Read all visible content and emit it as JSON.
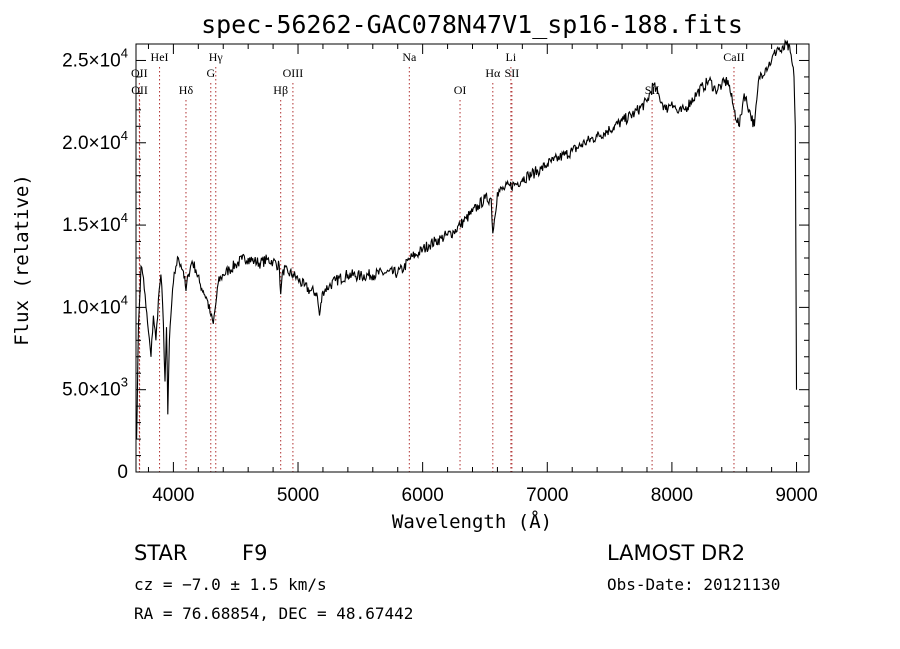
{
  "chart_data": {
    "type": "line",
    "title": "spec-56262-GAC078N47V1_sp16-188.fits",
    "xlabel": "Wavelength (Å)",
    "ylabel": "Flux (relative)",
    "xlim": [
      3700,
      9100
    ],
    "ylim": [
      0,
      26000
    ],
    "x_ticks": [
      {
        "value": 4000,
        "label": "4000"
      },
      {
        "value": 5000,
        "label": "5000"
      },
      {
        "value": 6000,
        "label": "6000"
      },
      {
        "value": 7000,
        "label": "7000"
      },
      {
        "value": 8000,
        "label": "8000"
      },
      {
        "value": 9000,
        "label": "9000"
      }
    ],
    "y_ticks": [
      {
        "value": 0,
        "mant": "0",
        "exp": ""
      },
      {
        "value": 5000,
        "mant": "5.0×10",
        "exp": "3"
      },
      {
        "value": 10000,
        "mant": "1.0×10",
        "exp": "4"
      },
      {
        "value": 15000,
        "mant": "1.5×10",
        "exp": "4"
      },
      {
        "value": 20000,
        "mant": "2.0×10",
        "exp": "4"
      },
      {
        "value": 25000,
        "mant": "2.5×10",
        "exp": "4"
      }
    ],
    "series": [
      {
        "color": "#000000",
        "x": [
          3705,
          3720,
          3740,
          3760,
          3780,
          3800,
          3820,
          3840,
          3860,
          3880,
          3900,
          3920,
          3933,
          3945,
          3955,
          3968,
          3980,
          4000,
          4020,
          4040,
          4060,
          4080,
          4101,
          4120,
          4150,
          4180,
          4210,
          4240,
          4270,
          4300,
          4320,
          4340,
          4360,
          4383,
          4400,
          4450,
          4500,
          4550,
          4600,
          4650,
          4700,
          4750,
          4800,
          4850,
          4861,
          4880,
          4920,
          4960,
          5000,
          5050,
          5100,
          5150,
          5172,
          5200,
          5250,
          5300,
          5400,
          5500,
          5600,
          5700,
          5800,
          5850,
          5890,
          5920,
          5950,
          6000,
          6050,
          6100,
          6150,
          6200,
          6250,
          6300,
          6350,
          6400,
          6450,
          6500,
          6550,
          6563,
          6600,
          6650,
          6700,
          6750,
          6800,
          6850,
          6900,
          6950,
          7000,
          7050,
          7100,
          7150,
          7200,
          7300,
          7400,
          7500,
          7600,
          7700,
          7800,
          7850,
          7900,
          7950,
          8000,
          8050,
          8100,
          8150,
          8200,
          8250,
          8300,
          8350,
          8400,
          8450,
          8498,
          8542,
          8580,
          8620,
          8662,
          8700,
          8750,
          8800,
          8850,
          8880,
          8920,
          8950,
          8980,
          8990,
          9000
        ],
        "y": [
          2000,
          9000,
          12500,
          11800,
          10000,
          8500,
          7000,
          9500,
          8000,
          10500,
          12000,
          9000,
          5500,
          8800,
          3500,
          8000,
          9500,
          11500,
          12500,
          13000,
          12600,
          12200,
          11000,
          12000,
          12800,
          12300,
          11500,
          11000,
          10500,
          9500,
          9000,
          10200,
          11500,
          11800,
          12000,
          12300,
          12600,
          12900,
          13000,
          12800,
          12700,
          12900,
          12800,
          12500,
          10800,
          12300,
          12100,
          12000,
          11700,
          11300,
          11000,
          10900,
          9500,
          11000,
          11300,
          11600,
          12000,
          11900,
          12000,
          12100,
          12100,
          12400,
          12900,
          13100,
          13200,
          13500,
          13800,
          14000,
          14200,
          14400,
          14600,
          15000,
          15400,
          15800,
          16200,
          16600,
          16600,
          14500,
          17000,
          17200,
          17400,
          17500,
          17800,
          18000,
          18200,
          18400,
          18700,
          18900,
          19100,
          19300,
          19500,
          20000,
          20400,
          20800,
          21300,
          21800,
          22500,
          23500,
          22800,
          22000,
          22500,
          21800,
          22000,
          22500,
          23000,
          23400,
          23800,
          23200,
          23500,
          23800,
          22000,
          21000,
          23000,
          22000,
          21000,
          24000,
          24500,
          25000,
          25800,
          25500,
          26000,
          25500,
          24000,
          21000,
          5000
        ]
      }
    ],
    "emission_lines": [
      {
        "wl": 3727,
        "label": "OII",
        "row": 2
      },
      {
        "wl": 3729,
        "label": "OII",
        "row": 3
      },
      {
        "wl": 3889,
        "label": "HeI",
        "row": 1
      },
      {
        "wl": 4101,
        "label": "Hδ",
        "row": 3
      },
      {
        "wl": 4300,
        "label": "G",
        "row": 2
      },
      {
        "wl": 4340,
        "label": "Hγ",
        "row": 1
      },
      {
        "wl": 4861,
        "label": "Hβ",
        "row": 3
      },
      {
        "wl": 4959,
        "label": "OIII",
        "row": 2
      },
      {
        "wl": 5893,
        "label": "Na",
        "row": 1
      },
      {
        "wl": 6300,
        "label": "OI",
        "row": 3
      },
      {
        "wl": 6563,
        "label": "Hα",
        "row": 2
      },
      {
        "wl": 6708,
        "label": "Li",
        "row": 1
      },
      {
        "wl": 6716,
        "label": "SII",
        "row": 2
      },
      {
        "wl": 7841,
        "label": "SII",
        "row": 3
      },
      {
        "wl": 8498,
        "label": "CaII",
        "row": 1
      }
    ]
  },
  "info": {
    "class": "STAR",
    "subclass": "F9",
    "survey": "LAMOST DR2",
    "cz": "cz = −7.0 ± 1.5 km/s",
    "obs_date": "Obs-Date: 20121130",
    "coords": "RA =  76.68854, DEC =  48.67442"
  }
}
